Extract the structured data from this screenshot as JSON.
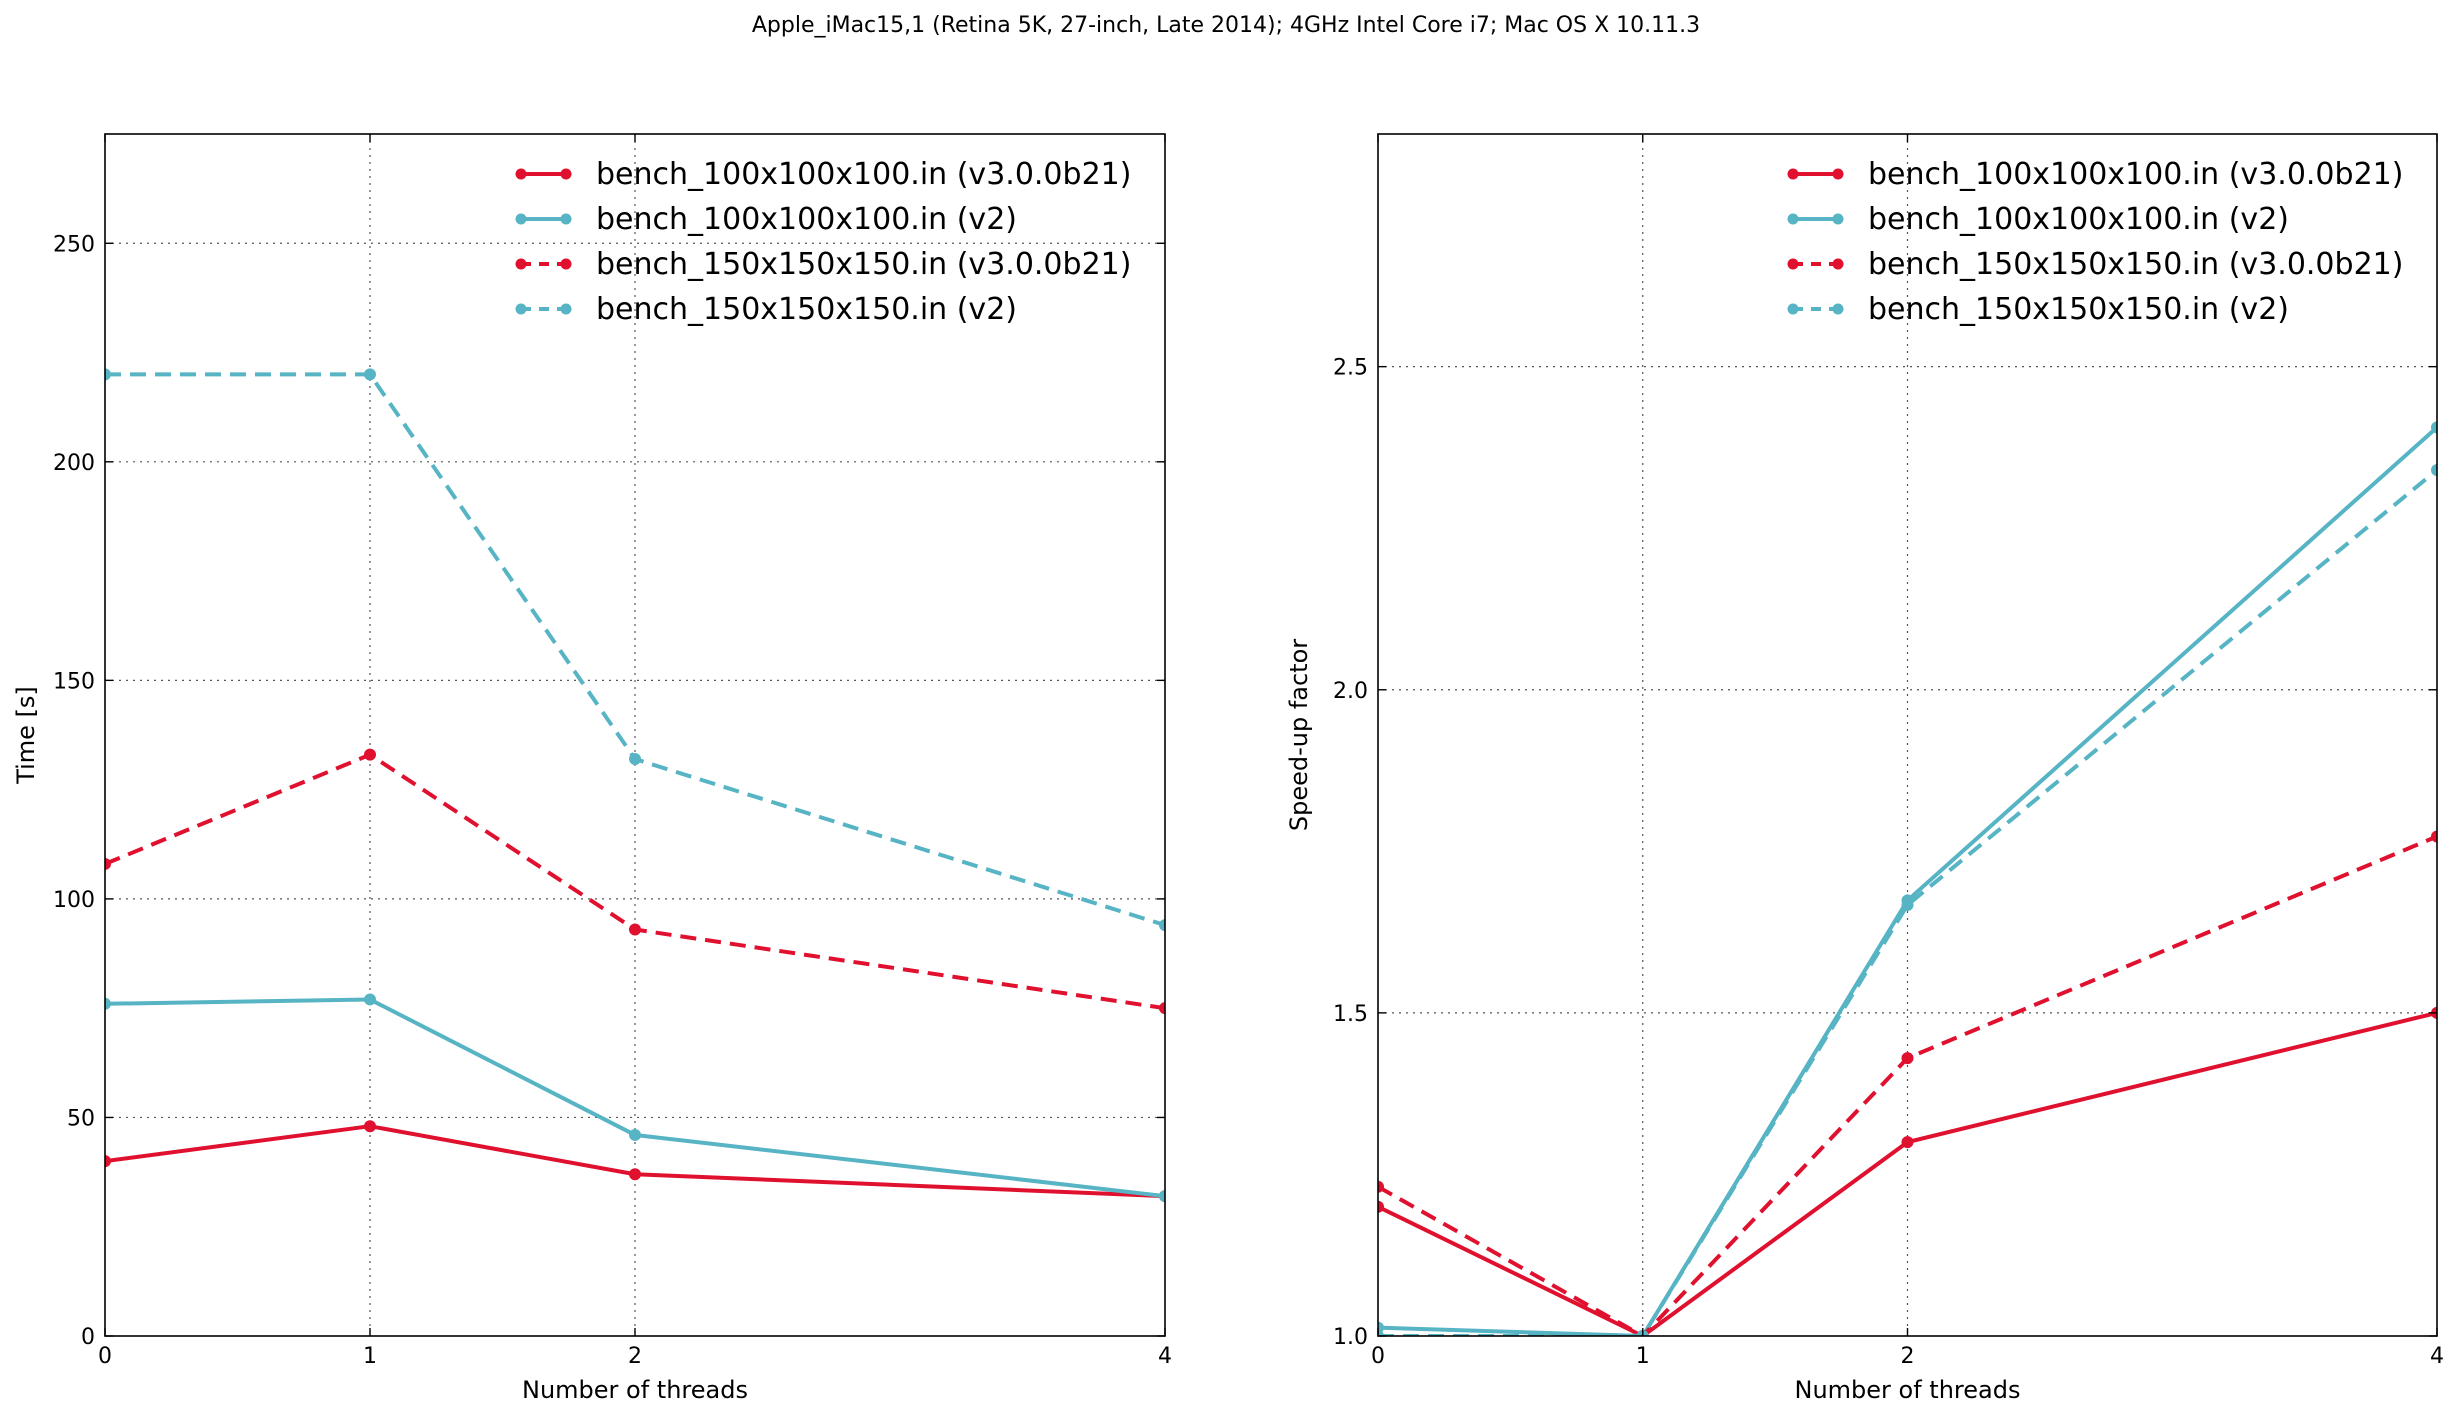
{
  "figure": {
    "title": "Apple_iMac15,1 (Retina 5K, 27-inch, Late 2014); 4GHz Intel Core i7; Mac OS X 10.11.3"
  },
  "colors": {
    "v3": "#e0102f",
    "v2": "#56b4c4"
  },
  "chart_data": [
    {
      "type": "line",
      "xlabel": "Number of threads",
      "ylabel": "Time [s]",
      "x_ticks": [
        0,
        1,
        2,
        4
      ],
      "x_tick_labels": [
        "0",
        "1",
        "2",
        "4"
      ],
      "y_ticks": [
        0,
        50,
        100,
        150,
        200,
        250
      ],
      "y_tick_labels": [
        "0",
        "50",
        "100",
        "150",
        "200",
        "250"
      ],
      "ylim": [
        0,
        275
      ],
      "grid": true,
      "legend_position": "top-right",
      "series": [
        {
          "name": "bench_100x100x100.in (v3.0.0b21)",
          "style": "solid",
          "color": "#e0102f",
          "values": [
            40,
            48,
            37,
            32
          ]
        },
        {
          "name": "bench_100x100x100.in (v2)",
          "style": "solid",
          "color": "#56b4c4",
          "values": [
            76,
            77,
            46,
            32
          ]
        },
        {
          "name": "bench_150x150x150.in (v3.0.0b21)",
          "style": "dashed",
          "color": "#e0102f",
          "values": [
            108,
            133,
            93,
            75
          ]
        },
        {
          "name": "bench_150x150x150.in (v2)",
          "style": "dashed",
          "color": "#56b4c4",
          "values": [
            220,
            220,
            132,
            94
          ]
        }
      ]
    },
    {
      "type": "line",
      "xlabel": "Number of threads",
      "ylabel": "Speed-up factor",
      "x_ticks": [
        0,
        1,
        2,
        4
      ],
      "x_tick_labels": [
        "0",
        "1",
        "2",
        "4"
      ],
      "y_ticks": [
        1.0,
        1.5,
        2.0,
        2.5
      ],
      "y_tick_labels": [
        "1.0",
        "1.5",
        "2.0",
        "2.5"
      ],
      "ylim": [
        1.0,
        2.86
      ],
      "grid": true,
      "legend_position": "top-right",
      "series": [
        {
          "name": "bench_100x100x100.in (v3.0.0b21)",
          "style": "solid",
          "color": "#e0102f",
          "values": [
            1.2,
            1.0,
            1.3,
            1.5
          ]
        },
        {
          "name": "bench_100x100x100.in (v2)",
          "style": "solid",
          "color": "#56b4c4",
          "values": [
            1.013,
            1.0,
            1.674,
            2.406
          ]
        },
        {
          "name": "bench_150x150x150.in (v3.0.0b21)",
          "style": "dashed",
          "color": "#e0102f",
          "values": [
            1.231,
            1.0,
            1.43,
            1.773
          ]
        },
        {
          "name": "bench_150x150x150.in (v2)",
          "style": "dashed",
          "color": "#56b4c4",
          "values": [
            1.0,
            1.0,
            1.667,
            2.34
          ]
        }
      ]
    }
  ]
}
